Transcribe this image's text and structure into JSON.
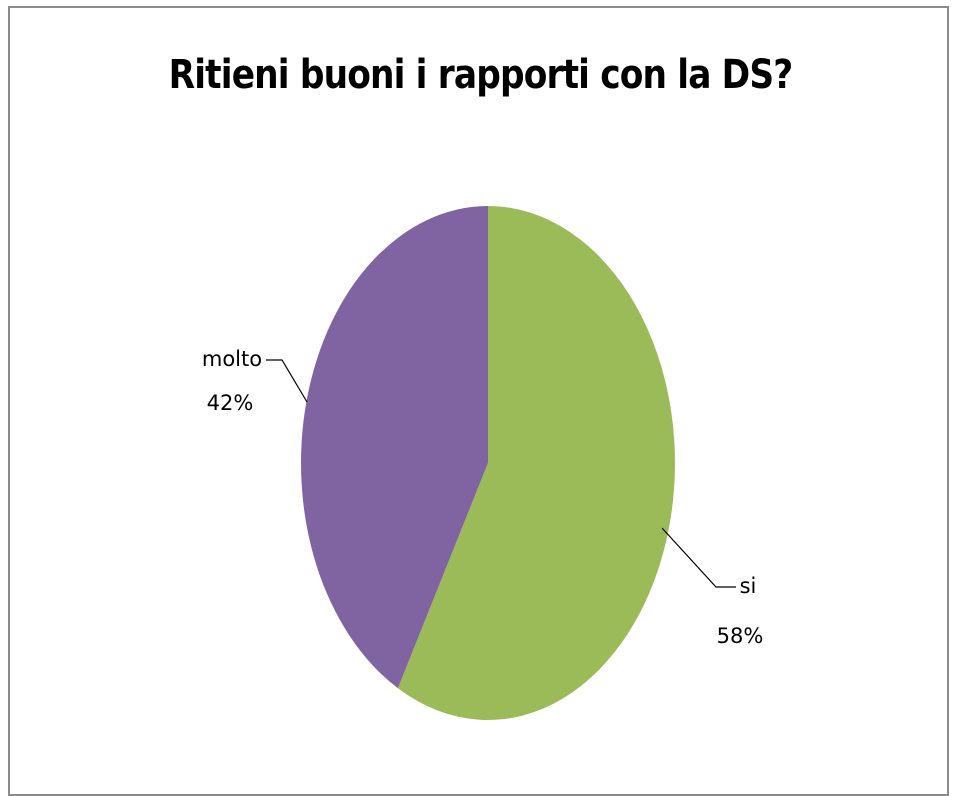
{
  "chart_data": {
    "type": "pie",
    "title": "Ritieni buoni i rapporti con la DS?",
    "slices": [
      {
        "label": "si",
        "value": 58,
        "percent_label": "58%",
        "color": "#9BBB59"
      },
      {
        "label": "molto",
        "value": 42,
        "percent_label": "42%",
        "color": "#8064A2"
      }
    ],
    "start_angle_deg": 0,
    "direction": "clockwise",
    "legend": "none",
    "data_labels": "outside-with-leader-lines"
  }
}
